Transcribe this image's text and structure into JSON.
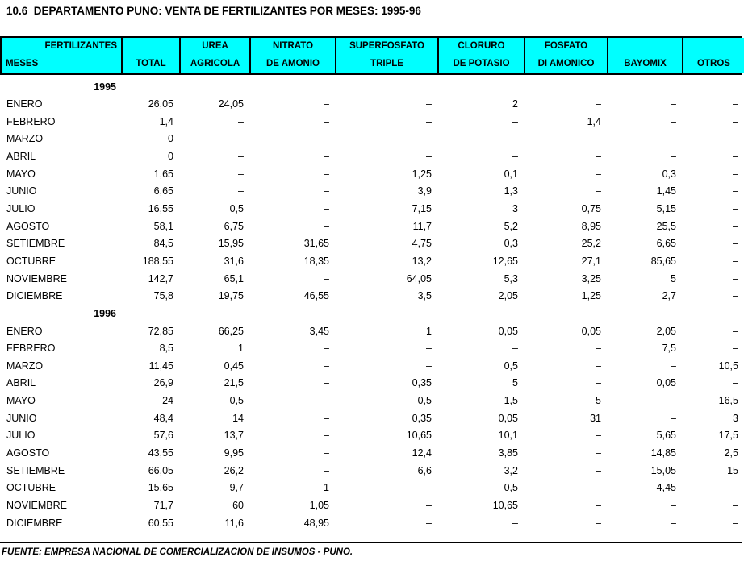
{
  "title": "10.6  DEPARTAMENTO PUNO: VENTA DE FERTILIZANTES POR MESES: 1995-96",
  "colors": {
    "header_bg": "#00ffff",
    "border": "#000000",
    "text": "#000000",
    "background": "#ffffff"
  },
  "table": {
    "header": {
      "columns": [
        {
          "top": "FERTILIZANTES",
          "bottom": "MESES"
        },
        {
          "top": "",
          "bottom": "TOTAL"
        },
        {
          "top": "UREA",
          "bottom": "AGRICOLA"
        },
        {
          "top": "NITRATO",
          "bottom": "DE AMONIO"
        },
        {
          "top": "SUPERFOSFATO",
          "bottom": "TRIPLE"
        },
        {
          "top": "CLORURO",
          "bottom": "DE POTASIO"
        },
        {
          "top": "FOSFATO",
          "bottom": "DI AMONICO"
        },
        {
          "top": "",
          "bottom": "BAYOMIX"
        },
        {
          "top": "",
          "bottom": "OTROS"
        }
      ]
    },
    "value_columns": [
      "TOTAL",
      "UREA AGRICOLA",
      "NITRATO DE AMONIO",
      "SUPERFOSFATO TRIPLE",
      "CLORURO DE POTASIO",
      "FOSFATO DI AMONICO",
      "BAYOMIX",
      "OTROS"
    ],
    "no_data_symbol": "–",
    "sections": [
      {
        "year": "1995",
        "rows": [
          {
            "month": "ENERO",
            "values": [
              "26,05",
              "24,05",
              "–",
              "–",
              "2",
              "–",
              "–",
              "–"
            ]
          },
          {
            "month": "FEBRERO",
            "values": [
              "1,4",
              "–",
              "–",
              "–",
              "–",
              "1,4",
              "–",
              "–"
            ]
          },
          {
            "month": "MARZO",
            "values": [
              "0",
              "–",
              "–",
              "–",
              "–",
              "–",
              "–",
              "–"
            ]
          },
          {
            "month": "ABRIL",
            "values": [
              "0",
              "–",
              "–",
              "–",
              "–",
              "–",
              "–",
              "–"
            ]
          },
          {
            "month": "MAYO",
            "values": [
              "1,65",
              "–",
              "–",
              "1,25",
              "0,1",
              "–",
              "0,3",
              "–"
            ]
          },
          {
            "month": "JUNIO",
            "values": [
              "6,65",
              "–",
              "–",
              "3,9",
              "1,3",
              "–",
              "1,45",
              "–"
            ]
          },
          {
            "month": "JULIO",
            "values": [
              "16,55",
              "0,5",
              "–",
              "7,15",
              "3",
              "0,75",
              "5,15",
              "–"
            ]
          },
          {
            "month": "AGOSTO",
            "values": [
              "58,1",
              "6,75",
              "–",
              "11,7",
              "5,2",
              "8,95",
              "25,5",
              "–"
            ]
          },
          {
            "month": "SETIEMBRE",
            "values": [
              "84,5",
              "15,95",
              "31,65",
              "4,75",
              "0,3",
              "25,2",
              "6,65",
              "–"
            ]
          },
          {
            "month": "OCTUBRE",
            "values": [
              "188,55",
              "31,6",
              "18,35",
              "13,2",
              "12,65",
              "27,1",
              "85,65",
              "–"
            ]
          },
          {
            "month": "NOVIEMBRE",
            "values": [
              "142,7",
              "65,1",
              "–",
              "64,05",
              "5,3",
              "3,25",
              "5",
              "–"
            ]
          },
          {
            "month": "DICIEMBRE",
            "values": [
              "75,8",
              "19,75",
              "46,55",
              "3,5",
              "2,05",
              "1,25",
              "2,7",
              "–"
            ]
          }
        ]
      },
      {
        "year": "1996",
        "rows": [
          {
            "month": "ENERO",
            "values": [
              "72,85",
              "66,25",
              "3,45",
              "1",
              "0,05",
              "0,05",
              "2,05",
              "–"
            ]
          },
          {
            "month": "FEBRERO",
            "values": [
              "8,5",
              "1",
              "–",
              "–",
              "–",
              "–",
              "7,5",
              "–"
            ]
          },
          {
            "month": "MARZO",
            "values": [
              "11,45",
              "0,45",
              "–",
              "–",
              "0,5",
              "–",
              "–",
              "10,5"
            ]
          },
          {
            "month": "ABRIL",
            "values": [
              "26,9",
              "21,5",
              "–",
              "0,35",
              "5",
              "–",
              "0,05",
              "–"
            ]
          },
          {
            "month": "MAYO",
            "values": [
              "24",
              "0,5",
              "–",
              "0,5",
              "1,5",
              "5",
              "–",
              "16,5"
            ]
          },
          {
            "month": "JUNIO",
            "values": [
              "48,4",
              "14",
              "–",
              "0,35",
              "0,05",
              "31",
              "–",
              "3"
            ]
          },
          {
            "month": "JULIO",
            "values": [
              "57,6",
              "13,7",
              "–",
              "10,65",
              "10,1",
              "–",
              "5,65",
              "17,5"
            ]
          },
          {
            "month": "AGOSTO",
            "values": [
              "43,55",
              "9,95",
              "–",
              "12,4",
              "3,85",
              "–",
              "14,85",
              "2,5"
            ]
          },
          {
            "month": "SETIEMBRE",
            "values": [
              "66,05",
              "26,2",
              "–",
              "6,6",
              "3,2",
              "–",
              "15,05",
              "15"
            ]
          },
          {
            "month": "OCTUBRE",
            "values": [
              "15,65",
              "9,7",
              "1",
              "–",
              "0,5",
              "–",
              "4,45",
              "–"
            ]
          },
          {
            "month": "NOVIEMBRE",
            "values": [
              "71,7",
              "60",
              "1,05",
              "–",
              "10,65",
              "–",
              "–",
              "–"
            ]
          },
          {
            "month": "DICIEMBRE",
            "values": [
              "60,55",
              "11,6",
              "48,95",
              "–",
              "–",
              "–",
              "–",
              "–"
            ]
          }
        ]
      }
    ]
  },
  "footer": {
    "source": "FUENTE: EMPRESA NACIONAL DE COMERCIALIZACION DE INSUMOS - PUNO."
  }
}
